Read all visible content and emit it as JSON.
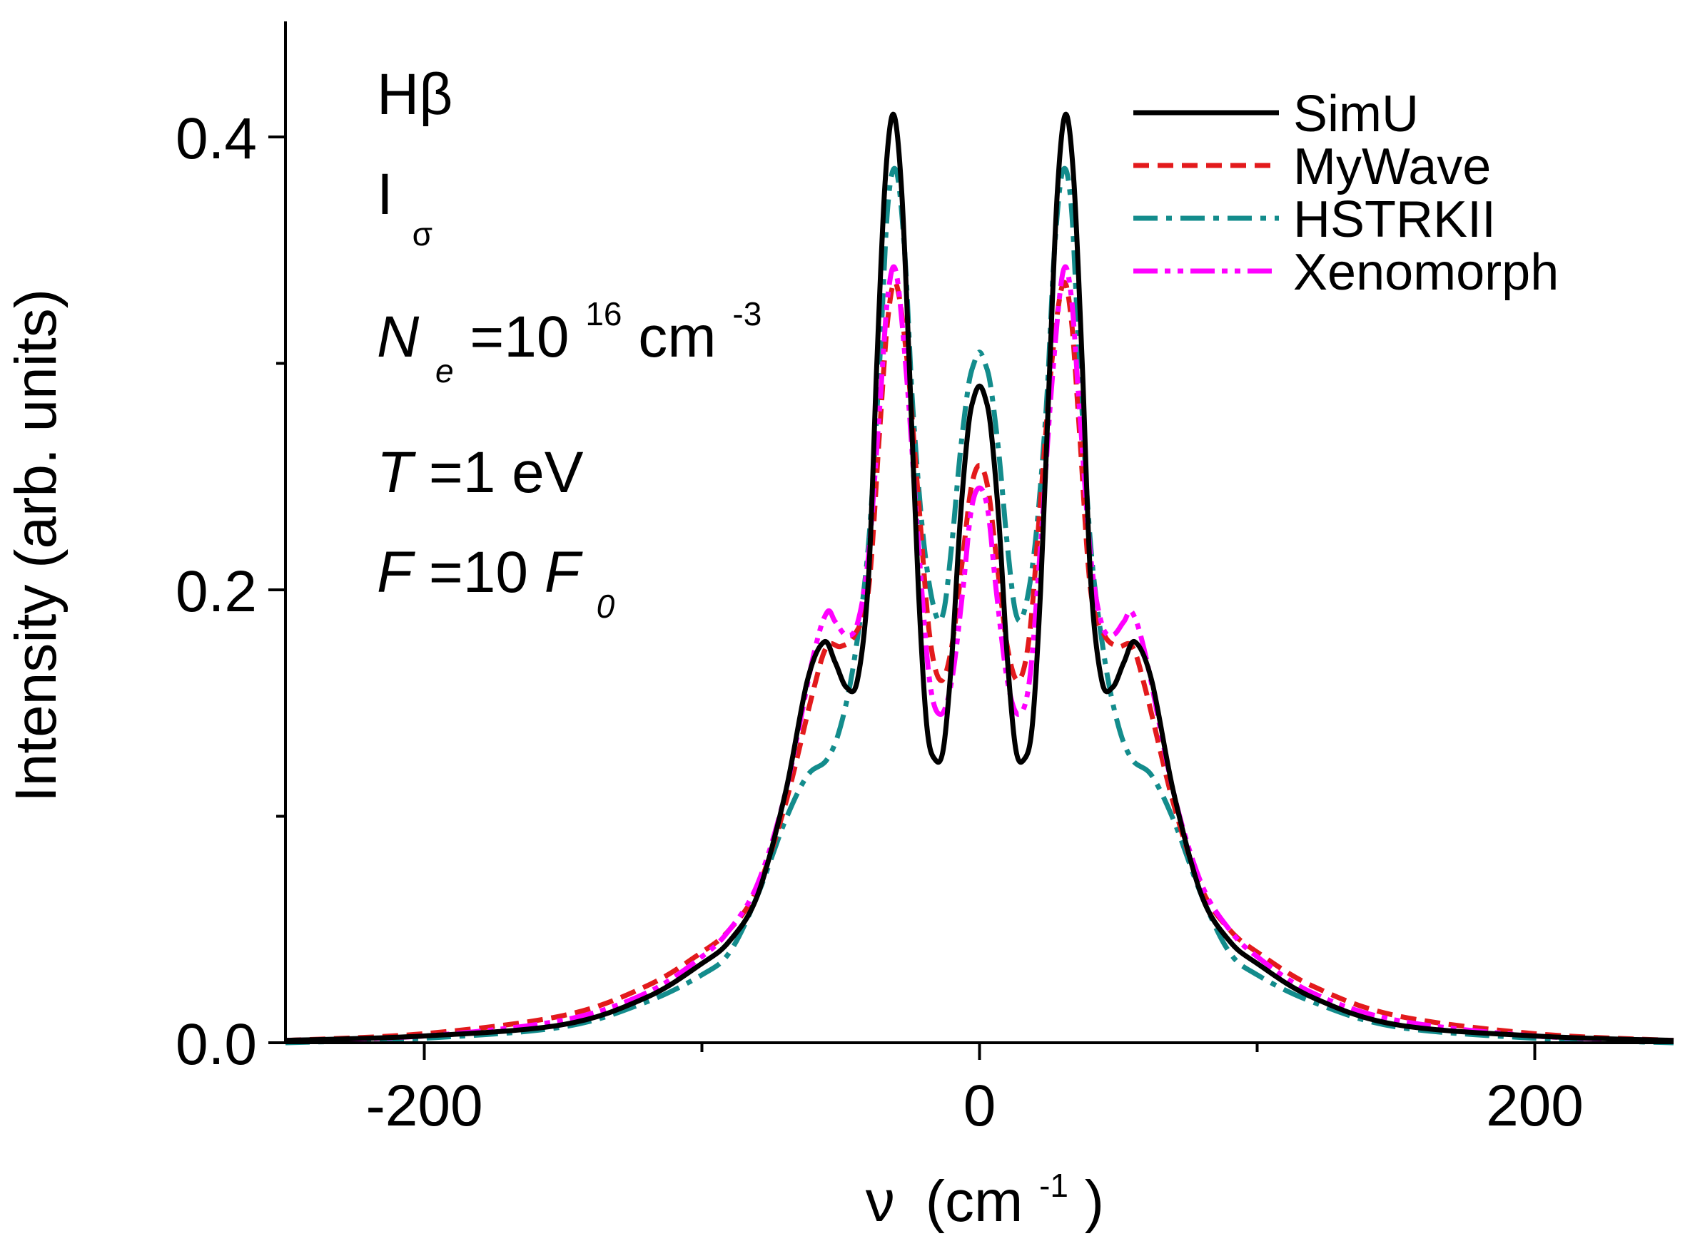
{
  "chart_data": {
    "type": "line",
    "xlabel": {
      "symbol": "ν",
      "unit": "(cm",
      "exp": "-1",
      "close": ")"
    },
    "ylabel": "Intensity (arb. units)",
    "xlim": [
      -250,
      250
    ],
    "ylim": [
      0,
      0.45
    ],
    "xticks": [
      -200,
      0,
      200
    ],
    "xtick_labels": [
      "-200",
      "0",
      "200"
    ],
    "x_minor_ticks": [
      -100,
      100
    ],
    "yticks": [
      0.0,
      0.2,
      0.4
    ],
    "ytick_labels": [
      "0.0",
      "0.2",
      "0.4"
    ],
    "y_minor_ticks": [
      0.1,
      0.3
    ],
    "annotations": {
      "line": "Hβ",
      "component": {
        "base": "I",
        "sub": "σ"
      },
      "density": {
        "sym": "N",
        "sub": "e",
        "eq": "=10",
        "exp1": "16",
        "unit": " cm",
        "exp2": "-3"
      },
      "temperature": {
        "sym": "T",
        "rest": " =1 eV"
      },
      "field": {
        "sym": "F",
        "rest": " =10 ",
        "sym2": "F",
        "sub": "0"
      }
    },
    "legend_position": "top-right",
    "series": [
      {
        "name": "SimU",
        "color": "#000000",
        "dash": "solid",
        "x": [
          -250,
          -200,
          -150,
          -120,
          -100,
          -90,
          -80,
          -70,
          -62,
          -56,
          -52,
          -48,
          -44,
          -40,
          -37,
          -34,
          -31,
          -28,
          -25,
          -22,
          -19,
          -16,
          -13,
          -10,
          -7,
          -4,
          -2,
          0
        ],
        "y": [
          0.001,
          0.003,
          0.008,
          0.02,
          0.035,
          0.045,
          0.065,
          0.11,
          0.16,
          0.177,
          0.168,
          0.157,
          0.16,
          0.205,
          0.3,
          0.38,
          0.41,
          0.375,
          0.29,
          0.2,
          0.14,
          0.125,
          0.13,
          0.17,
          0.23,
          0.272,
          0.285,
          0.29
        ]
      },
      {
        "name": "MyWave",
        "color": "#e31a1c",
        "dash": "dashed",
        "x": [
          -250,
          -200,
          -150,
          -120,
          -100,
          -90,
          -80,
          -70,
          -60,
          -55,
          -50,
          -45,
          -40,
          -36,
          -33,
          -30,
          -26,
          -22,
          -18,
          -14,
          -10,
          -6,
          -3,
          0
        ],
        "y": [
          0.001,
          0.004,
          0.012,
          0.025,
          0.04,
          0.05,
          0.068,
          0.105,
          0.155,
          0.175,
          0.175,
          0.18,
          0.2,
          0.27,
          0.32,
          0.335,
          0.3,
          0.24,
          0.18,
          0.16,
          0.175,
          0.215,
          0.245,
          0.255
        ]
      },
      {
        "name": "HSTRKII",
        "color": "#138c8c",
        "dash": "dashdot",
        "x": [
          -250,
          -200,
          -150,
          -120,
          -100,
          -90,
          -80,
          -70,
          -62,
          -55,
          -50,
          -45,
          -40,
          -36,
          -33,
          -30,
          -27,
          -24,
          -20,
          -16,
          -13,
          -10,
          -7,
          -4,
          -2,
          0
        ],
        "y": [
          0.0,
          0.002,
          0.007,
          0.018,
          0.03,
          0.04,
          0.065,
          0.098,
          0.118,
          0.125,
          0.14,
          0.17,
          0.22,
          0.3,
          0.37,
          0.385,
          0.35,
          0.28,
          0.22,
          0.19,
          0.19,
          0.22,
          0.26,
          0.29,
          0.3,
          0.305
        ]
      },
      {
        "name": "Xenomorph",
        "color": "#ff00ff",
        "dash": "dashdotdot",
        "x": [
          -250,
          -200,
          -150,
          -120,
          -100,
          -90,
          -80,
          -70,
          -60,
          -55,
          -52,
          -48,
          -44,
          -40,
          -36,
          -33,
          -30,
          -26,
          -22,
          -18,
          -14,
          -10,
          -6,
          -3,
          0
        ],
        "y": [
          0.001,
          0.003,
          0.01,
          0.022,
          0.038,
          0.05,
          0.07,
          0.11,
          0.17,
          0.19,
          0.186,
          0.18,
          0.185,
          0.215,
          0.28,
          0.33,
          0.34,
          0.29,
          0.22,
          0.16,
          0.145,
          0.16,
          0.2,
          0.235,
          0.245
        ]
      }
    ]
  }
}
